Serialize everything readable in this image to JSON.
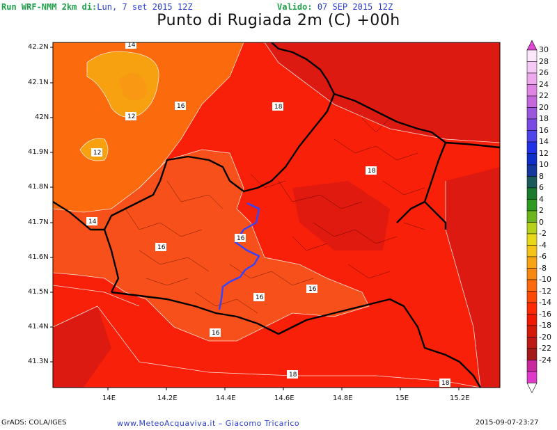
{
  "header": {
    "run_label": "Run WRF-NMM 2km di:",
    "run_date": "Lun, 7 set 2015 12Z",
    "valid_label": "Valido:",
    "valid_date": "07 SEP 2015 12Z",
    "title": "Punto di Rugiada 2m (C) +00h"
  },
  "axes": {
    "lat_labels": [
      "42.2N",
      "42.1N",
      "42N",
      "41.9N",
      "41.8N",
      "41.7N",
      "41.6N",
      "41.5N",
      "41.4N",
      "41.3N"
    ],
    "lon_labels": [
      "14E",
      "14.2E",
      "14.4E",
      "14.6E",
      "14.8E",
      "15E",
      "15.2E"
    ]
  },
  "colorbar": {
    "labels": [
      "30",
      "28",
      "26",
      "24",
      "22",
      "20",
      "18",
      "16",
      "14",
      "12",
      "10",
      "8",
      "6",
      "4",
      "2",
      "0",
      "-2",
      "-4",
      "-6",
      "-8",
      "-10",
      "-12",
      "-14",
      "-16",
      "-18",
      "-20",
      "-22",
      "-24"
    ],
    "colors": [
      "#fbe6fb",
      "#f5c8f5",
      "#eca9ec",
      "#df86e4",
      "#c468dc",
      "#9a56dc",
      "#7a4be3",
      "#4f43ea",
      "#2231e6",
      "#0f2fc9",
      "#15389e",
      "#1a5a5a",
      "#1b7a2e",
      "#2e9a22",
      "#6cb51e",
      "#b6d01c",
      "#e8d81a",
      "#f5c419",
      "#f7a514",
      "#f98812",
      "#fb6a0c",
      "#fc4a06",
      "#fd2a02",
      "#f01a00",
      "#d31b08",
      "#bc1a14",
      "#a31a1a",
      "#c62a9c",
      "#e03aca"
    ],
    "bottom_color": "#fdfdfd",
    "top_color": "#e04ad0"
  },
  "map": {
    "contour_labels": [
      "14",
      "12",
      "12",
      "14",
      "16",
      "16",
      "18",
      "18",
      "16",
      "16",
      "16",
      "16",
      "18",
      "18"
    ],
    "colors": {
      "dp_12": "#f7a010",
      "dp_14": "#fb6a0c",
      "dp_16": "#f8501a",
      "dp_18": "#f82008",
      "dp_20": "#dd1a12",
      "border": "#000000",
      "river": "#3344ff"
    }
  },
  "footer": {
    "grads": "GrADS: COLA/IGES",
    "site": "www.MeteoAcquaviva.it  –  Giacomo Tricarico",
    "timestamp": "2015-09-07-23:27"
  }
}
